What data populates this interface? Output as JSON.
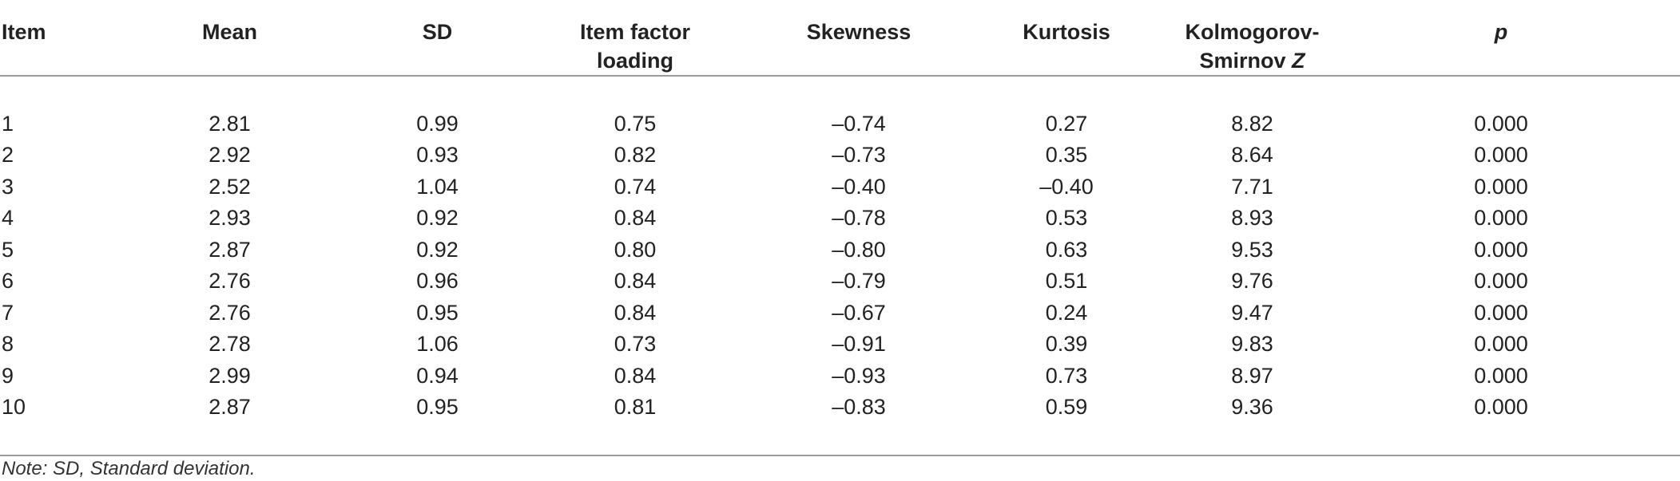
{
  "table": {
    "headers": {
      "item": "Item",
      "mean": "Mean",
      "sd": "SD",
      "loading_line1": "Item factor",
      "loading_line2": "loading",
      "skewness": "Skewness",
      "kurtosis": "Kurtosis",
      "ks_line1": "Kolmogorov-",
      "ks_line2_text": "Smirnov ",
      "ks_line2_z": "Z",
      "p": "p"
    },
    "rows": [
      {
        "item": "1",
        "mean": "2.81",
        "sd": "0.99",
        "loading": "0.75",
        "skewness": "–0.74",
        "kurtosis": "0.27",
        "ks": "8.82",
        "p": "0.000"
      },
      {
        "item": "2",
        "mean": "2.92",
        "sd": "0.93",
        "loading": "0.82",
        "skewness": "–0.73",
        "kurtosis": "0.35",
        "ks": "8.64",
        "p": "0.000"
      },
      {
        "item": "3",
        "mean": "2.52",
        "sd": "1.04",
        "loading": "0.74",
        "skewness": "–0.40",
        "kurtosis": "–0.40",
        "ks": "7.71",
        "p": "0.000"
      },
      {
        "item": "4",
        "mean": "2.93",
        "sd": "0.92",
        "loading": "0.84",
        "skewness": "–0.78",
        "kurtosis": "0.53",
        "ks": "8.93",
        "p": "0.000"
      },
      {
        "item": "5",
        "mean": "2.87",
        "sd": "0.92",
        "loading": "0.80",
        "skewness": "–0.80",
        "kurtosis": "0.63",
        "ks": "9.53",
        "p": "0.000"
      },
      {
        "item": "6",
        "mean": "2.76",
        "sd": "0.96",
        "loading": "0.84",
        "skewness": "–0.79",
        "kurtosis": "0.51",
        "ks": "9.76",
        "p": "0.000"
      },
      {
        "item": "7",
        "mean": "2.76",
        "sd": "0.95",
        "loading": "0.84",
        "skewness": "–0.67",
        "kurtosis": "0.24",
        "ks": "9.47",
        "p": "0.000"
      },
      {
        "item": "8",
        "mean": "2.78",
        "sd": "1.06",
        "loading": "0.73",
        "skewness": "–0.91",
        "kurtosis": "0.39",
        "ks": "9.83",
        "p": "0.000"
      },
      {
        "item": "9",
        "mean": "2.99",
        "sd": "0.94",
        "loading": "0.84",
        "skewness": "–0.93",
        "kurtosis": "0.73",
        "ks": "8.97",
        "p": "0.000"
      },
      {
        "item": "10",
        "mean": "2.87",
        "sd": "0.95",
        "loading": "0.81",
        "skewness": "–0.83",
        "kurtosis": "0.59",
        "ks": "9.36",
        "p": "0.000"
      }
    ]
  },
  "note": "Note: SD, Standard deviation.",
  "colors": {
    "rule": "#9a9a9a",
    "text": "#222222"
  }
}
